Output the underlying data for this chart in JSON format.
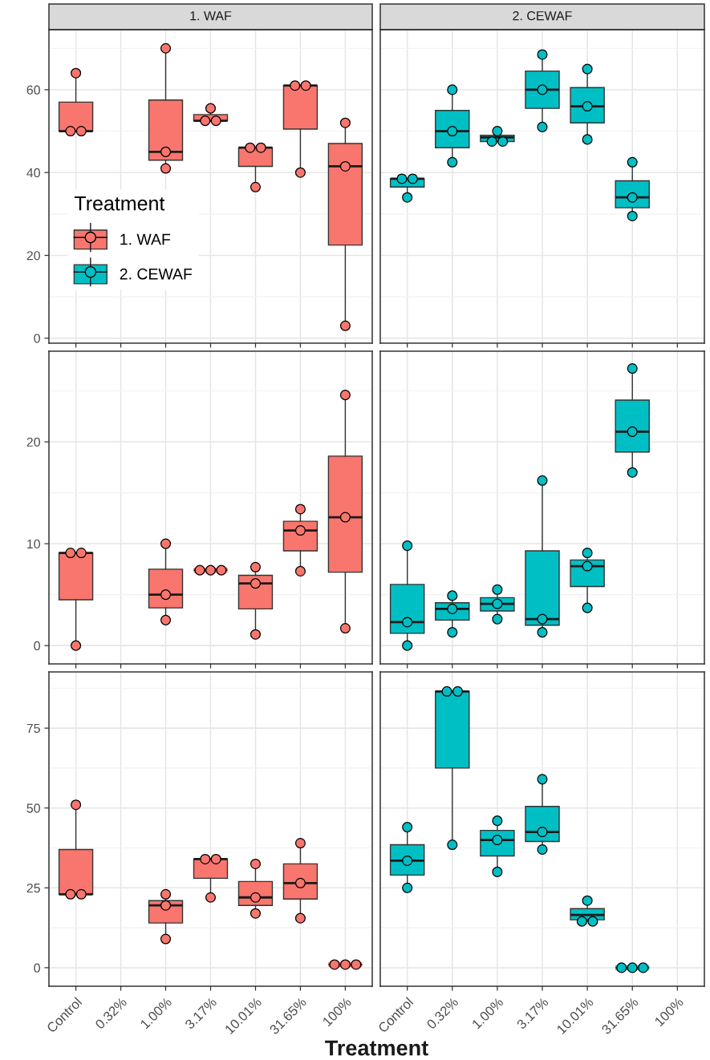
{
  "chart_data": [
    {
      "type": "box",
      "title": "1. WAF",
      "categories": [
        "Control",
        "0.32%",
        "1.00%",
        "3.17%",
        "10.01%",
        "31.65%",
        "100%"
      ],
      "series": [
        {
          "name": "1. WAF",
          "color": "#f8766d",
          "boxes": [
            {
              "low": 50,
              "q1": 50,
              "median": 50,
              "q3": 57,
              "high": 64
            },
            null,
            {
              "low": 41,
              "q1": 43,
              "median": 45,
              "q3": 57.5,
              "high": 70
            },
            {
              "low": 52.5,
              "q1": 52.5,
              "median": 52.5,
              "q3": 54,
              "high": 55.5
            },
            {
              "low": 36.5,
              "q1": 41.5,
              "median": 46,
              "q3": 46,
              "high": 46
            },
            {
              "low": 40,
              "q1": 50.5,
              "median": 61,
              "q3": 61,
              "high": 61
            },
            {
              "low": 3,
              "q1": 22.5,
              "median": 41.5,
              "q3": 47,
              "high": 52
            }
          ]
        },
        {
          "name": "2. CEWAF",
          "color": "#00bfc4",
          "boxes": [
            null,
            null,
            null,
            null,
            null,
            null,
            null
          ]
        },
        {
          "type": "scatter",
          "color": "#f8766d",
          "x": [
            "Control",
            "Control",
            "Control",
            "1.00%",
            "1.00%",
            "1.00%",
            "3.17%",
            "3.17%",
            "3.17%",
            "10.01%",
            "10.01%",
            "10.01%",
            "31.65%",
            "31.65%",
            "31.65%",
            "100%",
            "100%",
            "100%"
          ],
          "values": [
            64,
            50,
            50,
            70,
            45,
            41,
            55.5,
            52.5,
            52.5,
            46,
            46,
            36.5,
            61,
            61,
            40,
            52,
            41.5,
            3
          ]
        }
      ],
      "ylim": [
        -1.2,
        74.5
      ],
      "yticks": [
        0,
        20,
        40,
        60
      ],
      "grid": true,
      "marker": "circle",
      "tick_labels": "y",
      "legend": "bottom left",
      "legend_title": "Treatment"
    },
    {
      "type": "box",
      "title": "2. CEWAF",
      "categories": [
        "Control",
        "0.32%",
        "1.00%",
        "3.17%",
        "10.01%",
        "31.65%",
        "100%"
      ],
      "series": [
        {
          "color": "#00bfc4",
          "boxes": [
            {
              "low": 34,
              "q1": 36.5,
              "median": 38.5,
              "q3": 38.5,
              "high": 38.5
            },
            {
              "low": 42.5,
              "q1": 46,
              "median": 50,
              "q3": 55,
              "high": 60
            },
            {
              "low": 47.5,
              "q1": 47.5,
              "median": 48.5,
              "q3": 49,
              "high": 50
            },
            {
              "low": 51,
              "q1": 55.5,
              "median": 60,
              "q3": 64.5,
              "high": 68.5
            },
            {
              "low": 48,
              "q1": 52,
              "median": 56,
              "q3": 60.5,
              "high": 65
            },
            {
              "low": 29.5,
              "q1": 31.5,
              "median": 34,
              "q3": 38,
              "high": 42.5
            },
            null
          ]
        },
        {
          "type": "scatter",
          "color": "#00bfc4",
          "x": [
            "Control",
            "Control",
            "Control",
            "0.32%",
            "0.32%",
            "0.32%",
            "1.00%",
            "1.00%",
            "1.00%",
            "3.17%",
            "3.17%",
            "3.17%",
            "10.01%",
            "10.01%",
            "10.01%",
            "31.65%",
            "31.65%",
            "31.65%"
          ],
          "values": [
            38.5,
            38.5,
            34,
            60,
            50,
            42.5,
            50,
            47.5,
            47.5,
            68.5,
            60,
            51,
            65,
            56,
            48,
            42.5,
            34,
            29.5
          ]
        }
      ],
      "ylim": [
        -1.2,
        74.5
      ],
      "yticks": [
        0,
        20,
        40,
        60
      ],
      "grid": true,
      "marker": "circle",
      "tick_labels": false
    },
    {
      "type": "box",
      "categories": [
        "Control",
        "0.32%",
        "1.00%",
        "3.17%",
        "10.01%",
        "31.65%",
        "100%"
      ],
      "series": [
        {
          "color": "#f8766d",
          "boxes": [
            {
              "low": 0,
              "q1": 4.5,
              "median": 9.1,
              "q3": 9.1,
              "high": 9.1
            },
            null,
            {
              "low": 2.5,
              "q1": 3.7,
              "median": 5,
              "q3": 7.5,
              "high": 10
            },
            {
              "low": 7.4,
              "q1": 7.4,
              "median": 7.4,
              "q3": 7.4,
              "high": 7.4
            },
            {
              "low": 1.1,
              "q1": 3.6,
              "median": 6.1,
              "q3": 6.9,
              "high": 7.7
            },
            {
              "low": 7.3,
              "q1": 9.3,
              "median": 11.3,
              "q3": 12.2,
              "high": 13.4
            },
            {
              "low": 1.7,
              "q1": 7.2,
              "median": 12.6,
              "q3": 18.6,
              "high": 24.6
            }
          ]
        },
        {
          "type": "scatter",
          "color": "#f8766d",
          "x": [
            "Control",
            "Control",
            "Control",
            "1.00%",
            "1.00%",
            "1.00%",
            "3.17%",
            "3.17%",
            "3.17%",
            "10.01%",
            "10.01%",
            "10.01%",
            "31.65%",
            "31.65%",
            "31.65%",
            "100%",
            "100%",
            "100%"
          ],
          "values": [
            9.1,
            9.1,
            0,
            10,
            5,
            2.5,
            7.4,
            7.4,
            7.4,
            7.7,
            6.1,
            1.1,
            13.4,
            11.3,
            7.3,
            24.6,
            12.6,
            1.7
          ]
        }
      ],
      "ylim": [
        -1.8,
        28.9
      ],
      "yticks": [
        0,
        10,
        20
      ],
      "grid": true,
      "marker": "circle",
      "tick_labels": "y"
    },
    {
      "type": "box",
      "categories": [
        "Control",
        "0.32%",
        "1.00%",
        "3.17%",
        "10.01%",
        "31.65%",
        "100%"
      ],
      "series": [
        {
          "color": "#00bfc4",
          "boxes": [
            {
              "low": 0,
              "q1": 1.2,
              "median": 2.3,
              "q3": 6,
              "high": 9.8
            },
            {
              "low": 1.3,
              "q1": 2.5,
              "median": 3.6,
              "q3": 4.2,
              "high": 4.9
            },
            {
              "low": 2.6,
              "q1": 3.4,
              "median": 4.1,
              "q3": 4.7,
              "high": 5.5
            },
            {
              "low": 1.3,
              "q1": 2,
              "median": 2.6,
              "q3": 9.3,
              "high": 16.2
            },
            {
              "low": 3.7,
              "q1": 5.8,
              "median": 7.8,
              "q3": 8.4,
              "high": 9.1
            },
            {
              "low": 17,
              "q1": 19,
              "median": 21,
              "q3": 24.1,
              "high": 27.2
            },
            null
          ]
        },
        {
          "type": "scatter",
          "color": "#00bfc4",
          "x": [
            "Control",
            "Control",
            "Control",
            "0.32%",
            "0.32%",
            "0.32%",
            "1.00%",
            "1.00%",
            "1.00%",
            "3.17%",
            "3.17%",
            "3.17%",
            "10.01%",
            "10.01%",
            "10.01%",
            "31.65%",
            "31.65%",
            "31.65%"
          ],
          "values": [
            9.8,
            2.3,
            0,
            4.9,
            3.6,
            1.3,
            5.5,
            4.1,
            2.6,
            16.2,
            2.6,
            1.3,
            9.1,
            7.8,
            3.7,
            27.2,
            21,
            17
          ]
        }
      ],
      "ylim": [
        -1.8,
        28.9
      ],
      "yticks": [
        0,
        10,
        20
      ],
      "grid": true,
      "marker": "circle",
      "tick_labels": false
    },
    {
      "type": "box",
      "xlabel": "Treatment",
      "categories": [
        "Control",
        "0.32%",
        "1.00%",
        "3.17%",
        "10.01%",
        "31.65%",
        "100%"
      ],
      "series": [
        {
          "color": "#f8766d",
          "boxes": [
            {
              "low": 23,
              "q1": 23,
              "median": 23,
              "q3": 37,
              "high": 51
            },
            null,
            {
              "low": 9,
              "q1": 14,
              "median": 19.5,
              "q3": 21,
              "high": 23
            },
            {
              "low": 22,
              "q1": 28,
              "median": 34,
              "q3": 34,
              "high": 34
            },
            {
              "low": 17,
              "q1": 19.5,
              "median": 22,
              "q3": 27,
              "high": 32.5
            },
            {
              "low": 15.5,
              "q1": 21.5,
              "median": 26.5,
              "q3": 32.5,
              "high": 39
            },
            {
              "low": 1,
              "q1": 1,
              "median": 1,
              "q3": 1,
              "high": 1
            }
          ]
        },
        {
          "type": "scatter",
          "color": "#f8766d",
          "x": [
            "Control",
            "Control",
            "Control",
            "1.00%",
            "1.00%",
            "1.00%",
            "3.17%",
            "3.17%",
            "3.17%",
            "10.01%",
            "10.01%",
            "10.01%",
            "31.65%",
            "31.65%",
            "31.65%",
            "100%",
            "100%",
            "100%"
          ],
          "values": [
            51,
            23,
            23,
            23,
            19.5,
            9,
            34,
            34,
            22,
            32.5,
            22,
            17,
            39,
            26.5,
            15.5,
            1,
            1,
            1
          ]
        }
      ],
      "ylim": [
        -5.8,
        92.6
      ],
      "yticks": [
        0,
        25,
        50,
        75
      ],
      "grid": true,
      "marker": "circle"
    },
    {
      "type": "box",
      "categories": [
        "Control",
        "0.32%",
        "1.00%",
        "3.17%",
        "10.01%",
        "31.65%",
        "100%"
      ],
      "series": [
        {
          "color": "#00bfc4",
          "boxes": [
            {
              "low": 25,
              "q1": 29,
              "median": 33.5,
              "q3": 38.5,
              "high": 44
            },
            {
              "low": 38.5,
              "q1": 62.5,
              "median": 86.5,
              "q3": 86.5,
              "high": 86.5
            },
            {
              "low": 30,
              "q1": 35,
              "median": 40,
              "q3": 43,
              "high": 46
            },
            {
              "low": 37,
              "q1": 39.5,
              "median": 42.5,
              "q3": 50.5,
              "high": 59
            },
            {
              "low": 14.5,
              "q1": 15,
              "median": 16.5,
              "q3": 18.5,
              "high": 21
            },
            {
              "low": 0,
              "q1": 0,
              "median": 0,
              "q3": 0,
              "high": 0
            },
            null
          ]
        },
        {
          "type": "scatter",
          "color": "#00bfc4",
          "x": [
            "Control",
            "Control",
            "Control",
            "0.32%",
            "0.32%",
            "0.32%",
            "1.00%",
            "1.00%",
            "1.00%",
            "3.17%",
            "3.17%",
            "3.17%",
            "10.01%",
            "10.01%",
            "10.01%",
            "31.65%",
            "31.65%",
            "31.65%"
          ],
          "values": [
            44,
            33.5,
            25,
            86.5,
            86.5,
            38.5,
            46,
            40,
            30,
            59,
            42.5,
            37,
            21,
            14.5,
            14.5,
            0,
            0,
            0
          ]
        }
      ],
      "ylim": [
        -5.8,
        92.6
      ],
      "yticks": [
        0,
        25,
        50,
        75
      ],
      "grid": true,
      "marker": "circle",
      "tick_labels": "x"
    }
  ]
}
